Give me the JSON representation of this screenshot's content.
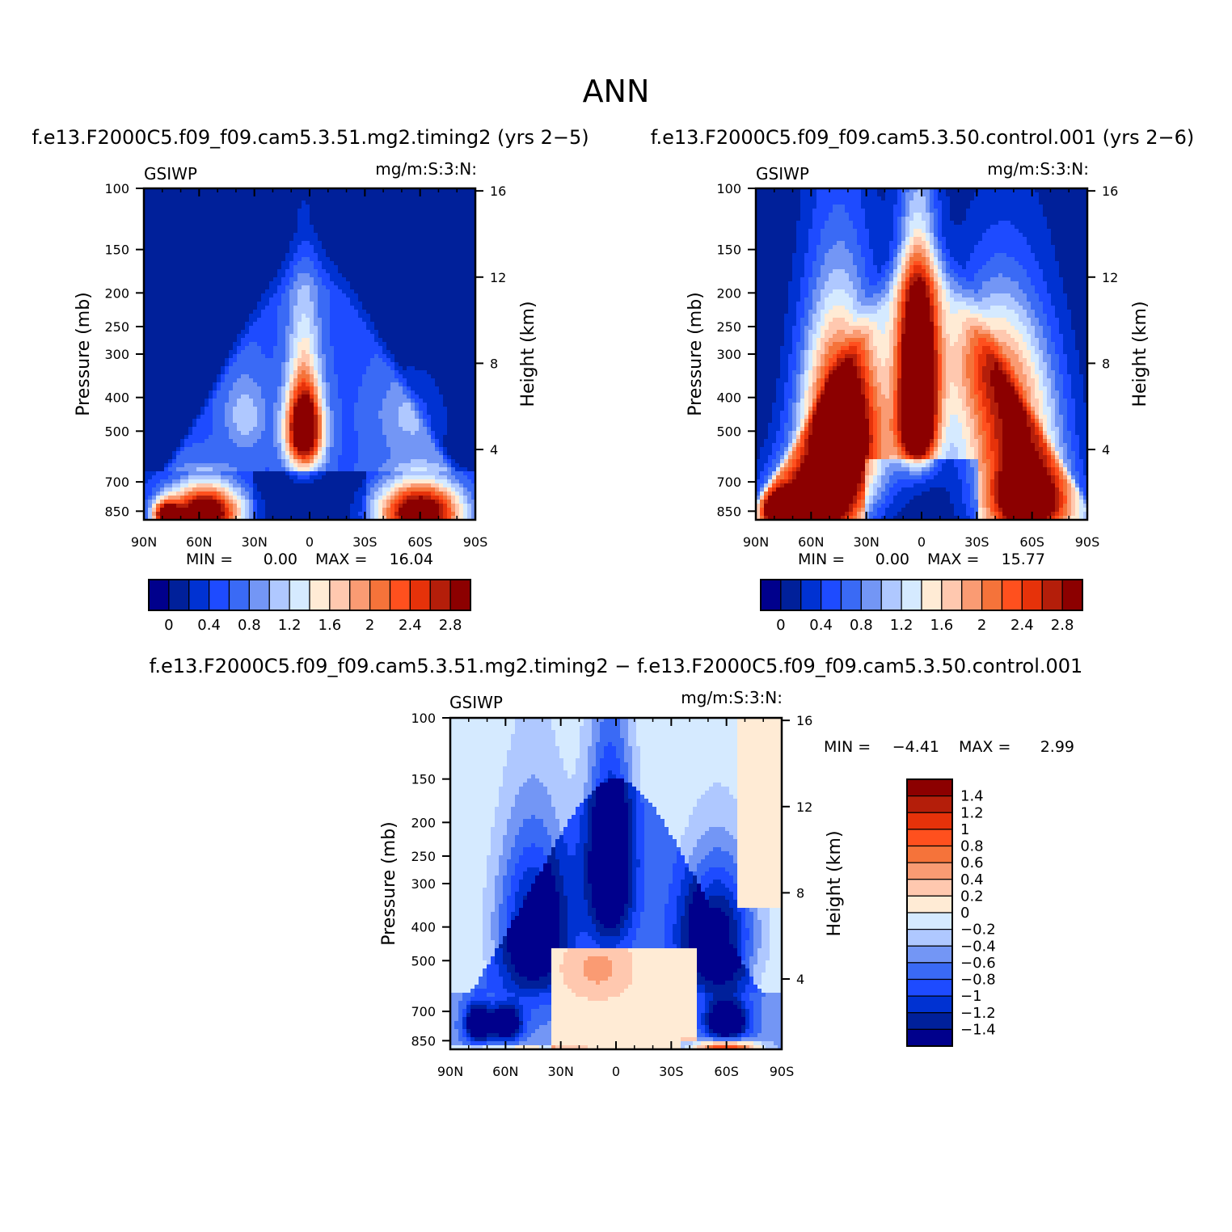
{
  "figure": {
    "title": "ANN",
    "colors": {
      "abs_levels": [
        "#00008c",
        "#00209a",
        "#0032d2",
        "#1e4bff",
        "#3a6af5",
        "#7396f5",
        "#afc8ff",
        "#d5eaff",
        "#ffebd5",
        "#ffc8af",
        "#fa9b73",
        "#f5733a",
        "#ff501e",
        "#e6320a",
        "#b41e0a",
        "#8c0000"
      ],
      "diff_levels": [
        "#00008c",
        "#00209a",
        "#0032d2",
        "#1e4bff",
        "#3a6af5",
        "#7396f5",
        "#afc8ff",
        "#d5eaff",
        "#ffebd5",
        "#ffc8af",
        "#fa9b73",
        "#f5733a",
        "#ff501e",
        "#e6320a",
        "#b41e0a",
        "#8c0000"
      ]
    }
  },
  "chart_data": [
    {
      "type": "heatmap",
      "id": "test",
      "title": "f.e13.F2000C5.f09_f09.cam5.3.51.mg2.timing2 (yrs 2−5)",
      "left_label": "GSIWP",
      "right_label": "mg/m:S:3:N:",
      "xlabel": "",
      "ylabel": "Pressure (mb)",
      "y2label": "Height (km)",
      "xticks": [
        "90N",
        "60N",
        "30N",
        "0",
        "30S",
        "60S",
        "90S"
      ],
      "xtick_values": [
        90,
        60,
        30,
        0,
        -30,
        -60,
        -90
      ],
      "yticks": [
        "100",
        "150",
        "200",
        "250",
        "300",
        "400",
        "500",
        "700",
        "850"
      ],
      "ytick_values": [
        100,
        150,
        200,
        250,
        300,
        400,
        500,
        700,
        850
      ],
      "y2ticks": [
        "16",
        "12",
        "8",
        "4"
      ],
      "y2tick_values": [
        16,
        12,
        8,
        4
      ],
      "ylim": [
        100,
        900
      ],
      "stats": {
        "min_label": "MIN =",
        "min": "0.00",
        "max_label": "MAX =",
        "max": "16.04"
      },
      "colorbar_labels": [
        "0",
        "0.4",
        "0.8",
        "1.2",
        "1.6",
        "2",
        "2.4",
        "2.8"
      ],
      "contour_levels": [
        0,
        0.2,
        0.4,
        0.6,
        0.8,
        1.0,
        1.2,
        1.4,
        1.6,
        1.8,
        2.0,
        2.2,
        2.4,
        2.6,
        2.8
      ]
    },
    {
      "type": "heatmap",
      "id": "control",
      "title": "f.e13.F2000C5.f09_f09.cam5.3.50.control.001 (yrs 2−6)",
      "left_label": "GSIWP",
      "right_label": "mg/m:S:3:N:",
      "xlabel": "",
      "ylabel": "Pressure (mb)",
      "y2label": "Height (km)",
      "xticks": [
        "90N",
        "60N",
        "30N",
        "0",
        "30S",
        "60S",
        "90S"
      ],
      "xtick_values": [
        90,
        60,
        30,
        0,
        -30,
        -60,
        -90
      ],
      "yticks": [
        "100",
        "150",
        "200",
        "250",
        "300",
        "400",
        "500",
        "700",
        "850"
      ],
      "ytick_values": [
        100,
        150,
        200,
        250,
        300,
        400,
        500,
        700,
        850
      ],
      "y2ticks": [
        "16",
        "12",
        "8",
        "4"
      ],
      "y2tick_values": [
        16,
        12,
        8,
        4
      ],
      "ylim": [
        100,
        900
      ],
      "stats": {
        "min_label": "MIN =",
        "min": "0.00",
        "max_label": "MAX =",
        "max": "15.77"
      },
      "colorbar_labels": [
        "0",
        "0.4",
        "0.8",
        "1.2",
        "1.6",
        "2",
        "2.4",
        "2.8"
      ],
      "contour_levels": [
        0,
        0.2,
        0.4,
        0.6,
        0.8,
        1.0,
        1.2,
        1.4,
        1.6,
        1.8,
        2.0,
        2.2,
        2.4,
        2.6,
        2.8
      ]
    },
    {
      "type": "heatmap",
      "id": "diff",
      "title": "f.e13.F2000C5.f09_f09.cam5.3.51.mg2.timing2 − f.e13.F2000C5.f09_f09.cam5.3.50.control.001",
      "left_label": "GSIWP",
      "right_label": "mg/m:S:3:N:",
      "xlabel": "",
      "ylabel": "Pressure (mb)",
      "y2label": "Height (km)",
      "xticks": [
        "90N",
        "60N",
        "30N",
        "0",
        "30S",
        "60S",
        "90S"
      ],
      "xtick_values": [
        90,
        60,
        30,
        0,
        -30,
        -60,
        -90
      ],
      "yticks": [
        "100",
        "150",
        "200",
        "250",
        "300",
        "400",
        "500",
        "700",
        "850"
      ],
      "ytick_values": [
        100,
        150,
        200,
        250,
        300,
        400,
        500,
        700,
        850
      ],
      "y2ticks": [
        "16",
        "12",
        "8",
        "4"
      ],
      "y2tick_values": [
        16,
        12,
        8,
        4
      ],
      "ylim": [
        100,
        900
      ],
      "stats": {
        "min_label": "MIN =",
        "min": "−4.41",
        "max_label": "MAX =",
        "max": "2.99"
      },
      "colorbar_labels": [
        "1.4",
        "1.2",
        "1",
        "0.8",
        "0.6",
        "0.4",
        "0.2",
        "0",
        "−0.2",
        "−0.4",
        "−0.6",
        "−0.8",
        "−1",
        "−1.2",
        "−1.4"
      ],
      "contour_levels": [
        -1.4,
        -1.2,
        -1.0,
        -0.8,
        -0.6,
        -0.4,
        -0.2,
        0,
        0.2,
        0.4,
        0.6,
        0.8,
        1.0,
        1.2,
        1.4
      ]
    }
  ]
}
